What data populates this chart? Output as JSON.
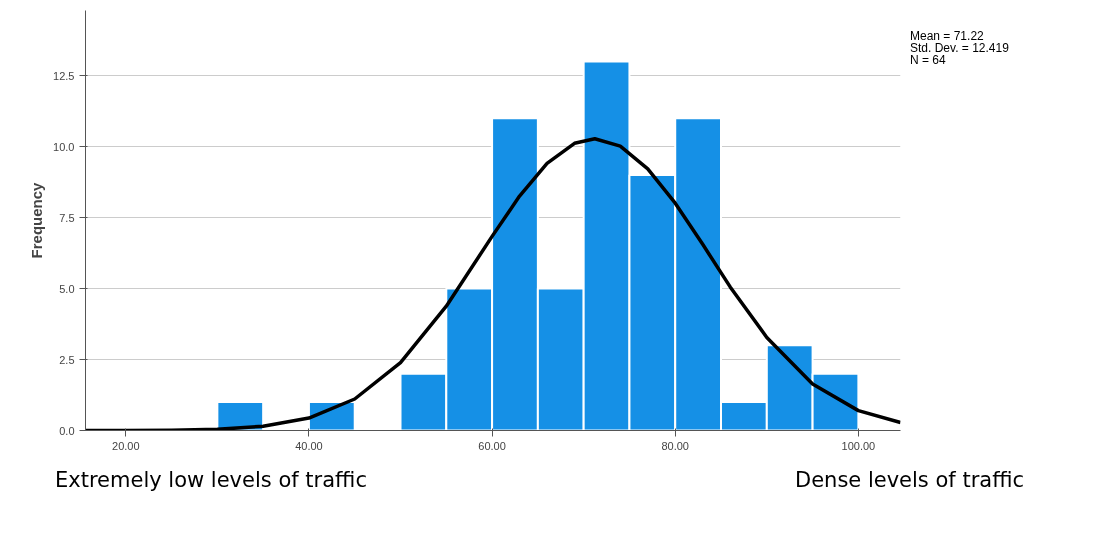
{
  "chart_data": {
    "type": "histogram",
    "bins": [
      30,
      35,
      40,
      45,
      50,
      55,
      60,
      65,
      70,
      75,
      80,
      85,
      90,
      95,
      100
    ],
    "values": [
      1,
      0,
      1,
      0,
      2,
      5,
      11,
      5,
      13,
      9,
      11,
      1,
      3,
      2
    ],
    "color": "#1590e6",
    "series": [
      {
        "type": "line",
        "color": "#000000",
        "x": [
          15.6,
          20,
          25,
          30,
          35,
          40,
          45,
          50,
          55,
          60,
          63,
          66,
          69,
          71.22,
          74,
          77,
          80,
          83,
          86,
          90,
          95,
          100,
          104.6
        ],
        "values": [
          0,
          0,
          0.01,
          0.04,
          0.15,
          0.44,
          1.11,
          2.39,
          4.38,
          6.84,
          8.26,
          9.41,
          10.12,
          10.28,
          10.02,
          9.22,
          8.01,
          6.56,
          5.06,
          3.28,
          1.64,
          0.7,
          0.28
        ]
      }
    ],
    "ylabel": "Frequency",
    "xlim": [
      15.6,
      104.6
    ],
    "ylim": [
      0,
      14.8
    ],
    "xticks": [
      {
        "value": 20,
        "label": "20.00"
      },
      {
        "value": 40,
        "label": "40.00"
      },
      {
        "value": 60,
        "label": "60.00"
      },
      {
        "value": 80,
        "label": "80.00"
      },
      {
        "value": 100,
        "label": "100.00"
      }
    ],
    "yticks": [
      {
        "value": 0,
        "label": "0.0"
      },
      {
        "value": 2.5,
        "label": "2.5"
      },
      {
        "value": 5,
        "label": "5.0"
      },
      {
        "value": 7.5,
        "label": "7.5"
      },
      {
        "value": 10,
        "label": "10.0"
      },
      {
        "value": 12.5,
        "label": "12.5"
      }
    ],
    "grid": "y",
    "annotations": [
      "Mean = 71.22",
      "Std. Dev. = 12.419",
      "N = 64",
      "Extremely low levels of traffic",
      "Dense levels of traffic"
    ]
  }
}
